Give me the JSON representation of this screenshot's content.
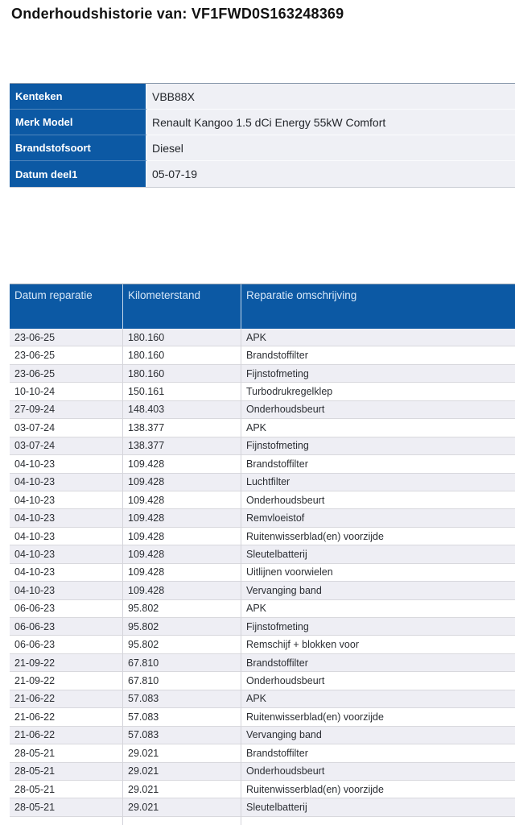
{
  "page": {
    "title": "Onderhoudshistorie van: VF1FWD0S163248369"
  },
  "colors": {
    "header_blue": "#0c59a4",
    "header_text": "#d7e8f8",
    "row_alt_gray": "#eeeef4",
    "row_white": "#ffffff",
    "row_border": "#d8d8dd",
    "info_value_bg": "#eff0f5",
    "body_text": "#2b2e33"
  },
  "info_table": {
    "rows": [
      {
        "label": "Kenteken",
        "value": "VBB88X"
      },
      {
        "label": "Merk Model",
        "value": "Renault Kangoo 1.5 dCi Energy 55kW Comfort"
      },
      {
        "label": "Brandstofsoort",
        "value": "Diesel"
      },
      {
        "label": "Datum deel1",
        "value": "05-07-19"
      }
    ]
  },
  "history_table": {
    "columns": [
      "Datum reparatie",
      "Kilometerstand",
      "Reparatie omschrijving"
    ],
    "rows": [
      [
        "23-06-25",
        "180.160",
        "APK"
      ],
      [
        "23-06-25",
        "180.160",
        "Brandstoffilter"
      ],
      [
        "23-06-25",
        "180.160",
        "Fijnstofmeting"
      ],
      [
        "10-10-24",
        "150.161",
        "Turbodrukregelklep"
      ],
      [
        "27-09-24",
        "148.403",
        "Onderhoudsbeurt"
      ],
      [
        "03-07-24",
        "138.377",
        "APK"
      ],
      [
        "03-07-24",
        "138.377",
        "Fijnstofmeting"
      ],
      [
        "04-10-23",
        "109.428",
        "Brandstoffilter"
      ],
      [
        "04-10-23",
        "109.428",
        "Luchtfilter"
      ],
      [
        "04-10-23",
        "109.428",
        "Onderhoudsbeurt"
      ],
      [
        "04-10-23",
        "109.428",
        "Remvloeistof"
      ],
      [
        "04-10-23",
        "109.428",
        "Ruitenwisserblad(en) voorzijde"
      ],
      [
        "04-10-23",
        "109.428",
        "Sleutelbatterij"
      ],
      [
        "04-10-23",
        "109.428",
        "Uitlijnen voorwielen"
      ],
      [
        "04-10-23",
        "109.428",
        "Vervanging band"
      ],
      [
        "06-06-23",
        "95.802",
        "APK"
      ],
      [
        "06-06-23",
        "95.802",
        "Fijnstofmeting"
      ],
      [
        "06-06-23",
        "95.802",
        "Remschijf + blokken voor"
      ],
      [
        "21-09-22",
        "67.810",
        "Brandstoffilter"
      ],
      [
        "21-09-22",
        "67.810",
        "Onderhoudsbeurt"
      ],
      [
        "21-06-22",
        "57.083",
        "APK"
      ],
      [
        "21-06-22",
        "57.083",
        "Ruitenwisserblad(en) voorzijde"
      ],
      [
        "21-06-22",
        "57.083",
        "Vervanging band"
      ],
      [
        "28-05-21",
        "29.021",
        "Brandstoffilter"
      ],
      [
        "28-05-21",
        "29.021",
        "Onderhoudsbeurt"
      ],
      [
        "28-05-21",
        "29.021",
        "Ruitenwisserblad(en) voorzijde"
      ],
      [
        "28-05-21",
        "29.021",
        "Sleutelbatterij"
      ]
    ]
  }
}
